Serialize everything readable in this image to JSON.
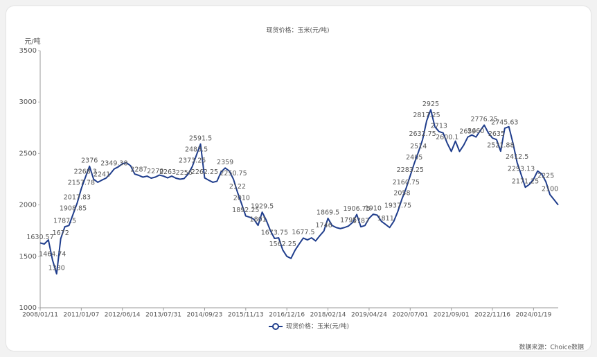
{
  "chart_data": {
    "type": "line",
    "title": "现货价格：玉米(元/吨)",
    "y_label": "元/吨",
    "source": "数据来源：Choice数据",
    "categories": [
      "2008/01/11",
      null,
      null,
      null,
      null,
      null,
      null,
      null,
      null,
      null,
      "2011/01/07",
      null,
      null,
      null,
      null,
      null,
      null,
      null,
      null,
      null,
      "2012/06/14",
      null,
      null,
      null,
      null,
      null,
      null,
      null,
      null,
      null,
      "2013/07/31",
      null,
      null,
      null,
      null,
      null,
      null,
      null,
      null,
      null,
      "2014/09/23",
      null,
      null,
      null,
      null,
      null,
      null,
      null,
      null,
      null,
      "2015/11/13",
      null,
      null,
      null,
      null,
      null,
      null,
      null,
      null,
      null,
      "2016/12/16",
      null,
      null,
      null,
      null,
      null,
      null,
      null,
      null,
      null,
      "2018/02/14",
      null,
      null,
      null,
      null,
      null,
      null,
      null,
      null,
      null,
      "2019/04/24",
      null,
      null,
      null,
      null,
      null,
      null,
      null,
      null,
      null,
      "2020/07/01",
      null,
      null,
      null,
      null,
      null,
      null,
      null,
      null,
      null,
      "2021/09/01",
      null,
      null,
      null,
      null,
      null,
      null,
      null,
      null,
      null,
      "2022/11/16",
      null,
      null,
      null,
      null,
      null,
      null,
      null,
      null,
      null,
      "2024/01/19",
      null,
      null,
      null,
      null,
      null,
      null
    ],
    "series": [
      {
        "name": "现货价格：玉米(元/吨)",
        "color": "#1f3d8c",
        "values": [
          1630.57,
          1620,
          1660,
          1464.74,
          1330,
          1672,
          1787.5,
          1800,
          1908.85,
          2017.83,
          2157.78,
          2268.3,
          2376,
          2250,
          2220,
          2241,
          2260,
          2300,
          2349.38,
          2370,
          2400,
          2410,
          2380,
          2300,
          2287,
          2270,
          2280,
          2260,
          2270,
          2290,
          2280,
          2263,
          2280,
          2260,
          2250,
          2256,
          2300,
          2373.25,
          2483.5,
          2591.5,
          2262.25,
          2240,
          2220,
          2230,
          2320,
          2359,
          2330,
          2250.75,
          2122,
          2010,
          1892.25,
          1880,
          1860,
          1801,
          1929.5,
          1850,
          1750,
          1673.75,
          1680,
          1562.25,
          1500,
          1480,
          1560,
          1620,
          1677.5,
          1660,
          1680,
          1650,
          1700,
          1746,
          1869.5,
          1800,
          1780,
          1770,
          1780,
          1795,
          1830,
          1906.75,
          1787,
          1800,
          1870,
          1910,
          1900,
          1840,
          1811,
          1780,
          1840,
          1937.75,
          2058,
          2160.75,
          2283.25,
          2405,
          2514,
          2632.75,
          2817.25,
          2925,
          2760,
          2713,
          2700,
          2600.1,
          2520,
          2620,
          2520,
          2580,
          2659,
          2680,
          2660,
          2720,
          2776.25,
          2700,
          2650,
          2635,
          2521.88,
          2745.63,
          2760,
          2600,
          2412.5,
          2293.13,
          2171.25,
          2200,
          2250,
          2330,
          2300,
          2225,
          2100,
          2050,
          2000
        ],
        "value_labels": [
          "1630.57",
          null,
          null,
          "1464.74",
          "1330",
          "1672",
          "1787.5",
          null,
          "1908.85",
          "2017.83",
          "2157.78",
          "2268.3",
          "2376",
          null,
          null,
          "2241",
          null,
          null,
          "2349.38",
          null,
          null,
          null,
          null,
          null,
          "2287",
          null,
          null,
          null,
          "2270",
          null,
          null,
          "2263",
          null,
          null,
          null,
          "2256",
          null,
          "2373.25",
          "2483.5",
          "2591.5",
          "2262.25",
          null,
          null,
          null,
          null,
          "2359",
          null,
          "2250.75",
          "2122",
          "2010",
          "1892.25",
          null,
          null,
          "1801",
          "1929.5",
          null,
          null,
          "1673.75",
          null,
          "1562.25",
          null,
          null,
          null,
          null,
          "1677.5",
          null,
          null,
          null,
          null,
          "1746",
          "1869.5",
          null,
          null,
          null,
          null,
          "1795",
          null,
          "1906.75",
          "1787",
          null,
          null,
          "1910",
          null,
          null,
          "1811",
          null,
          null,
          "1937.75",
          "2058",
          "2160.75",
          "2283.25",
          "2405",
          "2514",
          "2632.75",
          "2817.25",
          "2925",
          null,
          "2713",
          null,
          "2600.1",
          null,
          null,
          null,
          null,
          "2659",
          null,
          "2660",
          null,
          "2776.25",
          null,
          null,
          "2635",
          "2521.88",
          "2745.63",
          null,
          null,
          "2412.5",
          "2293.13",
          "2171.25",
          null,
          null,
          null,
          null,
          "2225",
          "2100",
          null,
          null
        ]
      }
    ],
    "ylim": [
      1000,
      3500
    ],
    "yticks": [
      1000,
      1500,
      2000,
      2500,
      3000,
      3500
    ],
    "grid": false
  }
}
